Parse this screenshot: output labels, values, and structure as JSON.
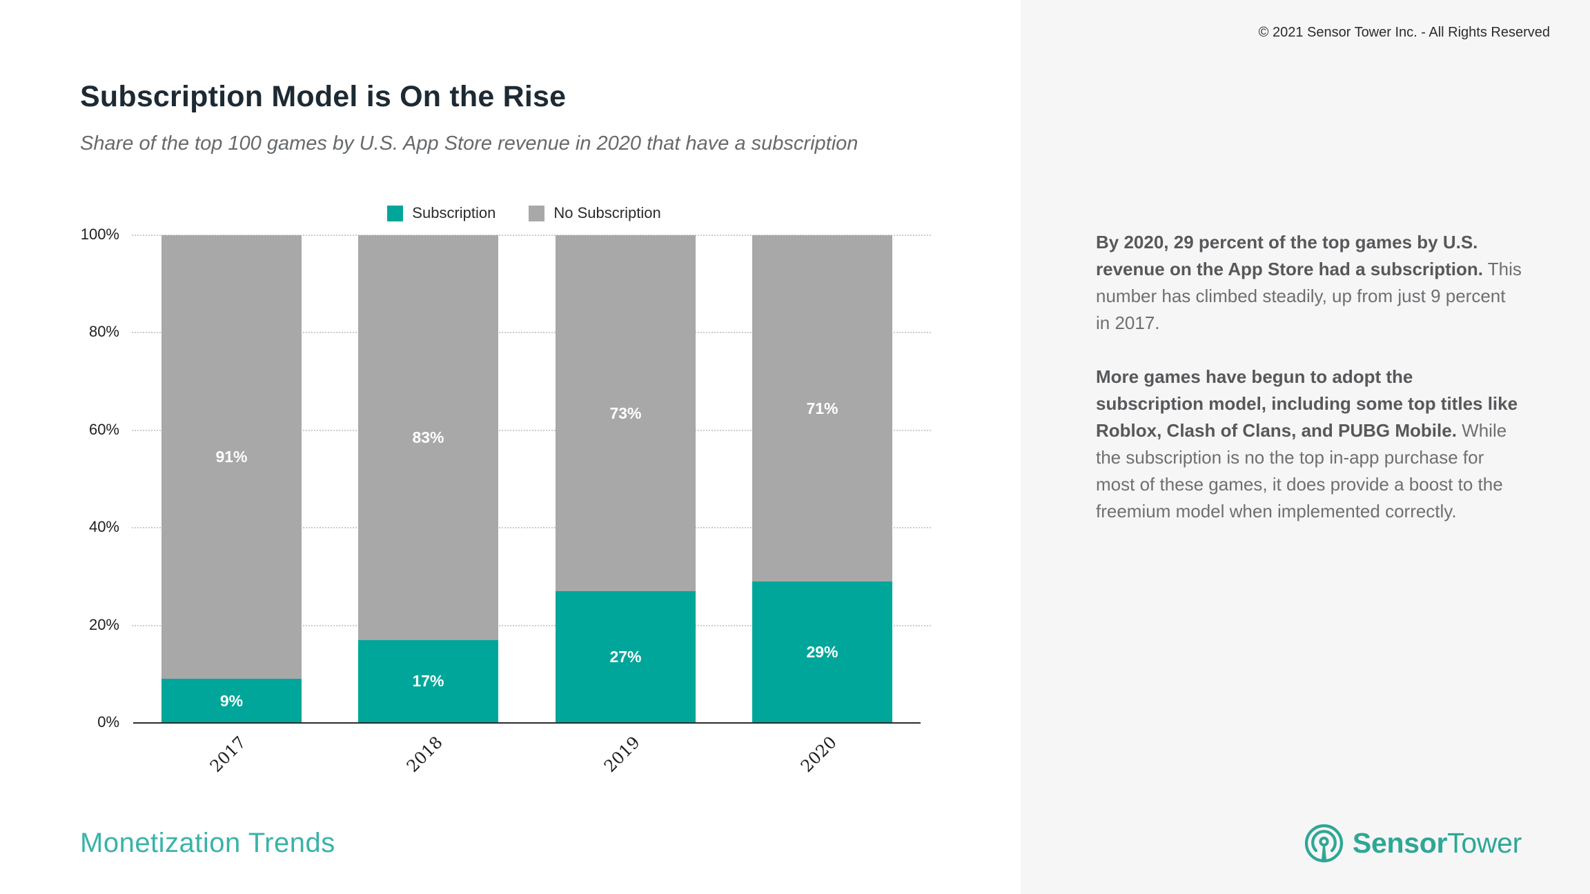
{
  "header": {
    "title": "Subscription Model is On the Rise",
    "subtitle": "Share of the top 100 games by U.S. App Store revenue in 2020 that have a subscription"
  },
  "chart_data": {
    "type": "bar",
    "stacked": true,
    "categories": [
      "2017",
      "2018",
      "2019",
      "2020"
    ],
    "series": [
      {
        "name": "Subscription",
        "color": "#00A69A",
        "values": [
          9,
          17,
          27,
          29
        ]
      },
      {
        "name": "No Subscription",
        "color": "#A8A8A8",
        "values": [
          91,
          83,
          73,
          71
        ]
      }
    ],
    "data_labels": [
      "9%",
      "17%",
      "27%",
      "29%",
      "91%",
      "83%",
      "73%",
      "71%"
    ],
    "value_suffix": "%",
    "ylim": [
      0,
      100
    ],
    "y_ticks": [
      "0%",
      "20%",
      "40%",
      "60%",
      "80%",
      "100%"
    ],
    "grid": "dotted-horizontal",
    "legend_position": "top-center",
    "data_label_style": "inside-center-white-bold"
  },
  "panel": {
    "copyright": "© 2021 Sensor Tower Inc. - All Rights Reserved",
    "paragraphs": [
      {
        "bold": "By 2020, 29 percent of the top games by U.S. revenue on the App Store had a subscription.",
        "regular": " This number has climbed steadily, up from just 9 percent in 2017."
      },
      {
        "bold": "More games have begun to adopt the subscription model, including some top titles like Roblox, Clash of Clans, and PUBG Mobile.",
        "regular": " While the subscription is no the top in-app purchase for most of these games, it does provide a boost to the freemium model when implemented correctly."
      }
    ]
  },
  "footer": {
    "label": "Monetization Trends"
  },
  "logo": {
    "icon": "sensor-tower-antenna-icon",
    "brand_bold": "Sensor",
    "brand_regular": "Tower",
    "color": "#2EA795"
  }
}
